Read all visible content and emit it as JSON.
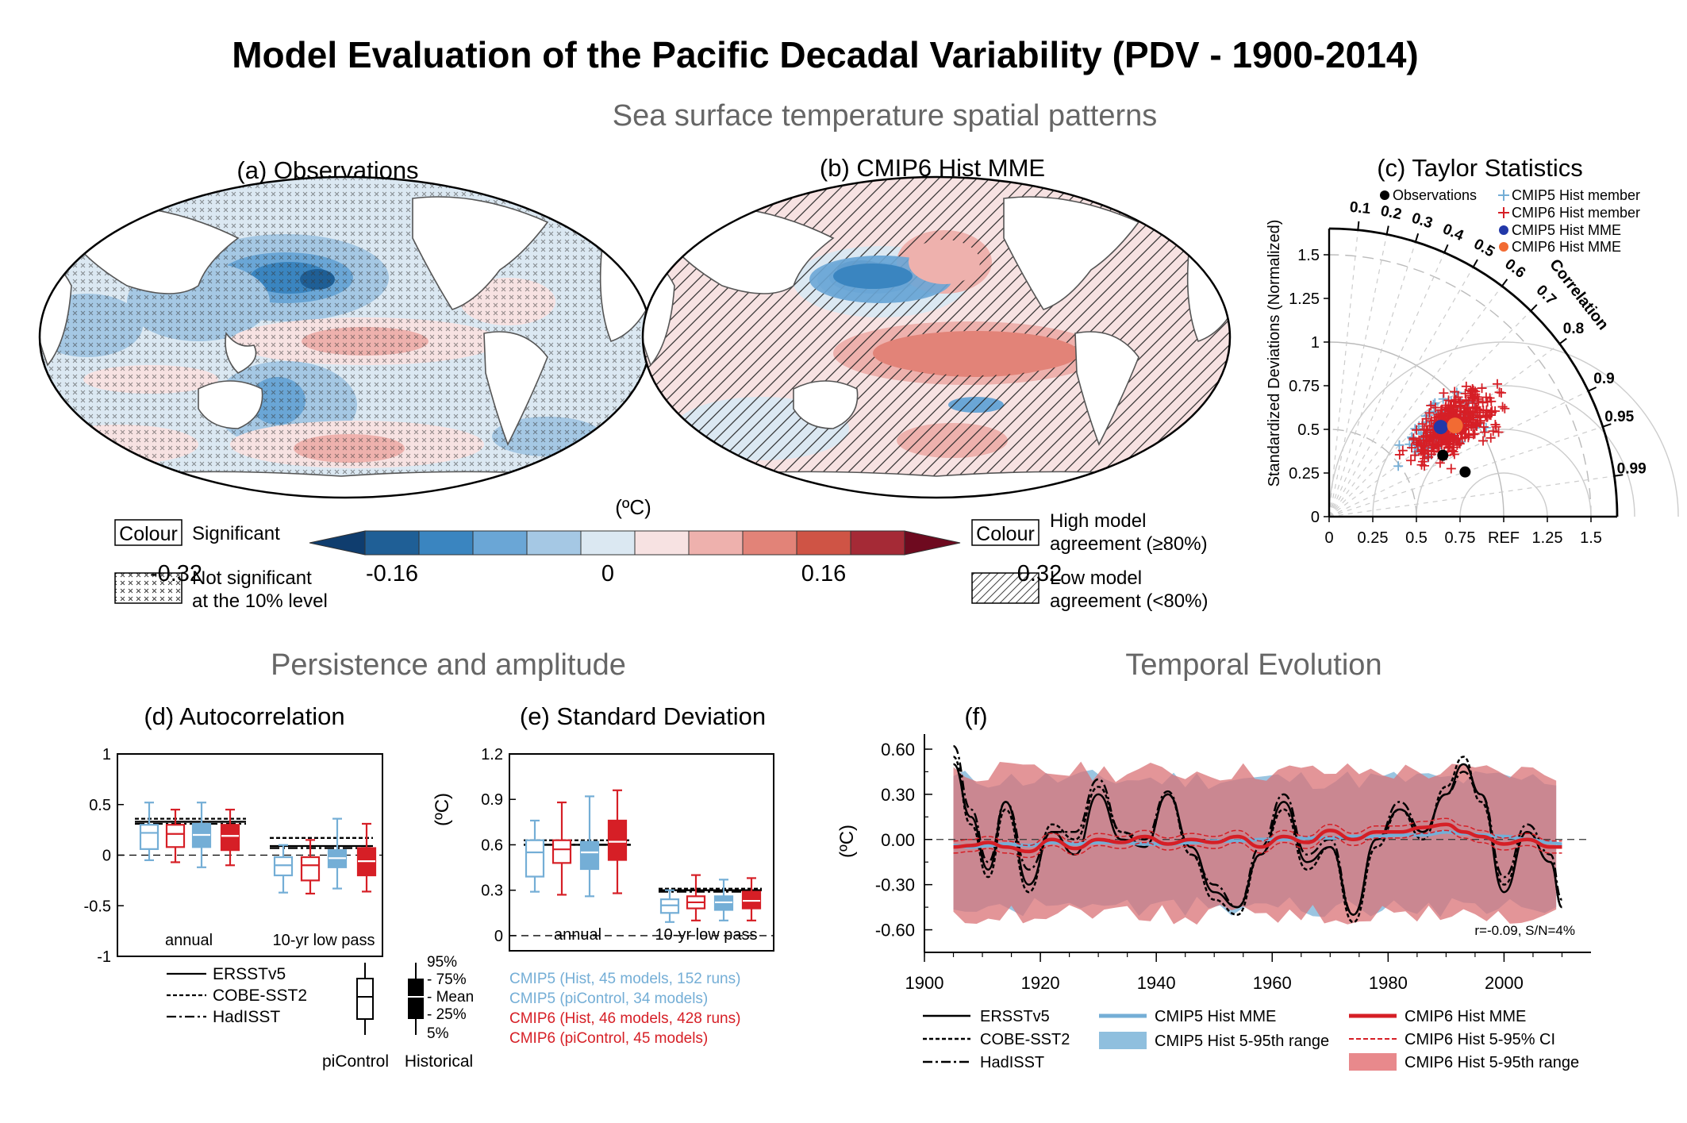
{
  "title": "Model Evaluation of the Pacific Decadal Variability (PDV - 1900-2014)",
  "sections": {
    "spatial": "Sea surface temperature spatial patterns",
    "persistence": "Persistence and amplitude",
    "temporal": "Temporal Evolution"
  },
  "panels": {
    "a": "(a) Observations",
    "b": "(b) CMIP6 Hist MME",
    "c": "(c) Taylor Statistics",
    "d": "(d) Autocorrelation",
    "e": "(e) Standard Deviation",
    "f": "(f)"
  },
  "map_legend": {
    "colour_box": "Colour",
    "significant": "Significant",
    "not_significant_1": "Not significant",
    "not_significant_2": "at the 10% level",
    "high_agree_1": "High model",
    "high_agree_2": "agreement (≥80%)",
    "low_agree_1": "Low model",
    "low_agree_2": "agreement (<80%)"
  },
  "colorbar": {
    "unit": "(ºC)",
    "ticks": [
      "-0.32",
      "-0.16",
      "0",
      "0.16",
      "0.32"
    ],
    "tick_values": [
      -0.32,
      -0.16,
      0,
      0.16,
      0.32
    ],
    "colors": [
      "#1f5f96",
      "#3a85c0",
      "#6aa6d6",
      "#a5c8e4",
      "#dbe8f2",
      "#f7e2e2",
      "#eeb1ad",
      "#e28378",
      "#cf5445",
      "#a52a36"
    ],
    "end_low": "#0f3d6e",
    "end_high": "#6e0a1f"
  },
  "chart_data": [
    {
      "id": "taylor",
      "type": "scatter",
      "title": "(c) Taylor Statistics",
      "ylabel": "Standardized Deviations (Normalized)",
      "xlim": [
        0,
        1.65
      ],
      "ylim": [
        0,
        1.65
      ],
      "std_ticks": [
        "0",
        "0.25",
        "0.5",
        "0.75",
        "1",
        "1.25",
        "1.5"
      ],
      "x_tick_labels": [
        "0",
        "0.25",
        "0.5",
        "0.75",
        "REF",
        "1.25",
        "1.5"
      ],
      "correlation_label": "Correlation",
      "correlation_ticks": [
        "0.1",
        "0.2",
        "0.3",
        "0.4",
        "0.5",
        "0.6",
        "0.7",
        "0.8",
        "0.9",
        "0.95",
        "0.99"
      ],
      "legend": [
        "Observations",
        "CMIP5 Hist member",
        "CMIP6 Hist member",
        "CMIP5 Hist MME",
        "CMIP6 Hist MME"
      ],
      "observations": [
        {
          "std": 0.74,
          "corr": 0.88
        },
        {
          "std": 0.82,
          "corr": 0.95
        }
      ],
      "cmip5_mme": {
        "std": 0.82,
        "corr": 0.78
      },
      "cmip6_mme": {
        "std": 0.89,
        "corr": 0.81
      },
      "member_cloud": {
        "cmip6_count": 428,
        "cmip5_count": 152
      }
    },
    {
      "id": "autocorrelation",
      "type": "box",
      "title": "(d) Autocorrelation",
      "ylim": [
        -1,
        1
      ],
      "y_ticks": [
        "1",
        "0.5",
        "0",
        "-0.5",
        "-1"
      ],
      "groups": [
        "annual",
        "10-yr low pass"
      ],
      "obs_lines": {
        "annual": {
          "ERSSTv5": 0.33,
          "COBE-SST2": 0.36,
          "HadISST": 0.31
        },
        "10-yr low pass": {
          "ERSSTv5": 0.09,
          "COBE-SST2": 0.17,
          "HadISST": 0.07
        }
      },
      "boxes": [
        {
          "group": "annual",
          "set": "CMIP5 piControl",
          "p5": -0.05,
          "p25": 0.06,
          "mean": 0.22,
          "p75": 0.3,
          "p95": 0.52
        },
        {
          "group": "annual",
          "set": "CMIP6 piControl",
          "p5": -0.07,
          "p25": 0.08,
          "mean": 0.21,
          "p75": 0.3,
          "p95": 0.45
        },
        {
          "group": "annual",
          "set": "CMIP5 Historical",
          "p5": -0.12,
          "p25": 0.08,
          "mean": 0.2,
          "p75": 0.31,
          "p95": 0.52
        },
        {
          "group": "annual",
          "set": "CMIP6 Historical",
          "p5": -0.1,
          "p25": 0.05,
          "mean": 0.19,
          "p75": 0.3,
          "p95": 0.45
        },
        {
          "group": "10-yr low pass",
          "set": "CMIP5 piControl",
          "p5": -0.37,
          "p25": -0.2,
          "mean": -0.1,
          "p75": -0.02,
          "p95": 0.1
        },
        {
          "group": "10-yr low pass",
          "set": "CMIP6 piControl",
          "p5": -0.38,
          "p25": -0.25,
          "mean": -0.1,
          "p75": -0.02,
          "p95": 0.15
        },
        {
          "group": "10-yr low pass",
          "set": "CMIP5 Historical",
          "p5": -0.33,
          "p25": -0.12,
          "mean": -0.03,
          "p75": 0.05,
          "p95": 0.36
        },
        {
          "group": "10-yr low pass",
          "set": "CMIP6 Historical",
          "p5": -0.36,
          "p25": -0.2,
          "mean": -0.06,
          "p75": 0.07,
          "p95": 0.31
        }
      ]
    },
    {
      "id": "stddev",
      "type": "box",
      "title": "(e) Standard Deviation",
      "ylabel": "(ºC)",
      "ylim": [
        -0.1,
        1.2
      ],
      "y_ticks": [
        "1.2",
        "0.9",
        "0.6",
        "0.3",
        "0"
      ],
      "groups": [
        "annual",
        "10-yr low pass"
      ],
      "obs_lines": {
        "annual": {
          "ERSSTv5": 0.6,
          "COBE-SST2": 0.63,
          "HadISST": 0.6
        },
        "10-yr low pass": {
          "ERSSTv5": 0.3,
          "COBE-SST2": 0.31,
          "HadISST": 0.29
        }
      },
      "boxes": [
        {
          "group": "annual",
          "set": "CMIP5 piControl",
          "p5": 0.29,
          "p25": 0.39,
          "mean": 0.55,
          "p75": 0.63,
          "p95": 0.76
        },
        {
          "group": "annual",
          "set": "CMIP6 piControl",
          "p5": 0.27,
          "p25": 0.48,
          "mean": 0.57,
          "p75": 0.63,
          "p95": 0.88
        },
        {
          "group": "annual",
          "set": "CMIP5 Historical",
          "p5": 0.26,
          "p25": 0.44,
          "mean": 0.55,
          "p75": 0.62,
          "p95": 0.92
        },
        {
          "group": "annual",
          "set": "CMIP6 Historical",
          "p5": 0.28,
          "p25": 0.5,
          "mean": 0.62,
          "p75": 0.76,
          "p95": 0.96
        },
        {
          "group": "10-yr low pass",
          "set": "CMIP5 piControl",
          "p5": 0.09,
          "p25": 0.15,
          "mean": 0.2,
          "p75": 0.24,
          "p95": 0.3
        },
        {
          "group": "10-yr low pass",
          "set": "CMIP6 piControl",
          "p5": 0.1,
          "p25": 0.18,
          "mean": 0.22,
          "p75": 0.26,
          "p95": 0.4
        },
        {
          "group": "10-yr low pass",
          "set": "CMIP5 Historical",
          "p5": 0.1,
          "p25": 0.17,
          "mean": 0.22,
          "p75": 0.26,
          "p95": 0.37
        },
        {
          "group": "10-yr low pass",
          "set": "CMIP6 Historical",
          "p5": 0.1,
          "p25": 0.18,
          "mean": 0.23,
          "p75": 0.29,
          "p95": 0.38
        }
      ]
    },
    {
      "id": "timeseries",
      "type": "line",
      "title": "(f)",
      "ylabel": "(ºC)",
      "xlim": [
        1900,
        2015
      ],
      "ylim": [
        -0.75,
        0.7
      ],
      "x_ticks": [
        "1900",
        "1920",
        "1940",
        "1960",
        "1980",
        "2000"
      ],
      "y_ticks": [
        "0.60",
        "0.30",
        "0.00",
        "-0.30",
        "-0.60"
      ],
      "annotation": "r=-0.09,  S/N=4%",
      "years": [
        1905,
        1908,
        1911,
        1914,
        1918,
        1922,
        1926,
        1930,
        1934,
        1938,
        1942,
        1946,
        1950,
        1954,
        1958,
        1962,
        1966,
        1970,
        1974,
        1978,
        1982,
        1986,
        1990,
        1993,
        1996,
        2000,
        2004,
        2008,
        2010
      ],
      "series": [
        {
          "name": "ERSSTv5",
          "values": [
            0.5,
            0.15,
            -0.2,
            0.25,
            -0.3,
            0.05,
            -0.1,
            0.3,
            0.0,
            -0.05,
            0.3,
            -0.05,
            -0.35,
            -0.45,
            -0.1,
            0.25,
            -0.15,
            -0.05,
            -0.5,
            0.0,
            0.2,
            0.05,
            0.3,
            0.5,
            0.3,
            -0.35,
            0.05,
            -0.15,
            -0.45
          ]
        },
        {
          "name": "COBE-SST2",
          "values": [
            0.55,
            0.1,
            -0.25,
            0.2,
            -0.35,
            0.1,
            0.0,
            0.35,
            0.05,
            -0.05,
            0.3,
            -0.1,
            -0.4,
            -0.5,
            -0.1,
            0.2,
            -0.2,
            -0.05,
            -0.55,
            -0.05,
            0.2,
            0.0,
            0.35,
            0.55,
            0.25,
            -0.3,
            0.05,
            -0.15,
            -0.45
          ]
        },
        {
          "name": "HadISST",
          "values": [
            0.62,
            0.2,
            -0.15,
            0.25,
            -0.2,
            0.05,
            0.05,
            0.4,
            0.05,
            0.0,
            0.32,
            -0.1,
            -0.3,
            -0.45,
            -0.05,
            0.3,
            -0.1,
            0.0,
            -0.5,
            0.0,
            0.25,
            0.05,
            0.3,
            0.45,
            0.3,
            -0.25,
            0.1,
            -0.1,
            -0.4
          ]
        },
        {
          "name": "CMIP5 Hist MME",
          "values": [
            -0.04,
            -0.05,
            -0.04,
            -0.03,
            -0.04,
            -0.02,
            -0.03,
            -0.02,
            -0.02,
            -0.03,
            -0.03,
            -0.02,
            -0.01,
            -0.01,
            0.0,
            0.0,
            0.01,
            0.01,
            0.02,
            0.02,
            0.03,
            0.03,
            0.05,
            0.04,
            0.03,
            0.02,
            0.0,
            -0.02,
            -0.03
          ]
        },
        {
          "name": "CMIP6 Hist MME",
          "values": [
            -0.05,
            -0.04,
            -0.02,
            -0.05,
            -0.08,
            0.0,
            -0.06,
            0.0,
            -0.02,
            0.02,
            -0.03,
            0.0,
            -0.02,
            0.02,
            -0.05,
            0.02,
            -0.02,
            0.06,
            0.0,
            0.05,
            0.05,
            0.08,
            0.1,
            0.05,
            0.02,
            -0.03,
            0.0,
            -0.05,
            -0.05
          ]
        }
      ],
      "cmip6_range": {
        "upper": 0.45,
        "lower": -0.5
      },
      "cmip5_range": {
        "upper": 0.4,
        "lower": -0.45
      },
      "legend": [
        "ERSSTv5",
        "COBE-SST2",
        "HadISST",
        "CMIP5 Hist MME",
        "CMIP5 Hist 5-95th range",
        "CMIP6 Hist MME",
        "CMIP6 Hist 5-95% CI",
        "CMIP6 Hist 5-95th range"
      ]
    }
  ],
  "box_legend": {
    "lines": [
      "ERSSTv5",
      "COBE-SST2",
      "HadISST"
    ],
    "pct": [
      "95%",
      "- 75%",
      "- Mean",
      "- 25%",
      "5%"
    ],
    "pi": "piControl",
    "hist": "Historical",
    "e_notes": [
      "CMIP5 (Hist, 45 models, 152 runs)",
      "CMIP5 (piControl, 34 models)",
      "CMIP6 (Hist, 46 models, 428 runs)",
      "CMIP6 (piControl, 45 models)"
    ]
  },
  "colors": {
    "cmip5": "#74aed6",
    "cmip6": "#d61f26",
    "cmip6_mme": "#f26b33",
    "cmip5_mme": "#2238a8",
    "section": "#666666",
    "cmip6_band": "#d97276",
    "cmip5_band": "#8fbfde"
  }
}
